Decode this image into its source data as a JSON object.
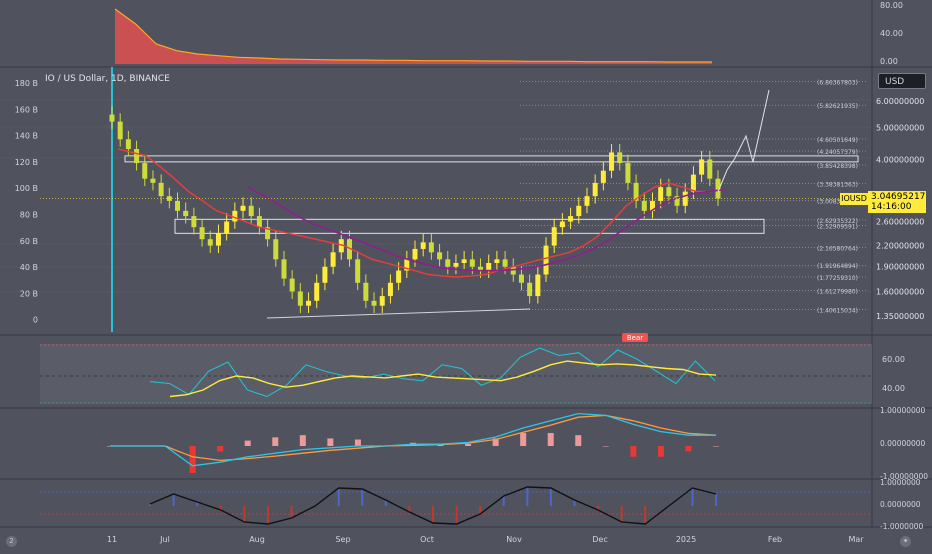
{
  "header": {
    "title": "IO / US Dollar, 1D, BINANCE"
  },
  "currency_button": "USD",
  "price_tag": {
    "symbol": "IOUSD",
    "price": "3.04695217",
    "countdown": "14:16:00"
  },
  "corner_icons": {
    "left": "2",
    "right": "tv-logo-icon"
  },
  "colors": {
    "background": "#50535e",
    "up_candle": "#ffeb3b",
    "down_candle": "#cddc39",
    "ma_fast": "#ef3b3b",
    "ma_slow": "#8e1f8e",
    "volume_area": "#e05050",
    "rsi": "#ffeb3b",
    "rsi_fast": "#21c6d6",
    "macd": "#2ec4e6",
    "signal": "#ff9a3c"
  },
  "price_axis": [
    "6.00000000",
    "5.00000000",
    "4.00000000",
    "2.60000000",
    "2.20000000",
    "1.90000000",
    "1.60000000",
    "1.35000000"
  ],
  "price_axis_values": [
    6.0,
    5.0,
    4.0,
    2.6,
    2.2,
    1.9,
    1.6,
    1.35
  ],
  "volume_axis": [
    "180 B",
    "160 B",
    "140 B",
    "120 B",
    "100 B",
    "80 B",
    "60 B",
    "40 B",
    "20 B",
    "0"
  ],
  "top_panel_axis": [
    "80.00",
    "40.00",
    "0.00"
  ],
  "rsi_axis": [
    "60.00",
    "40.00"
  ],
  "macd_axis": [
    "1.00000000",
    "0.00000000",
    "-1.00000000"
  ],
  "osc_axis": [
    "1.0000000",
    "0.0000000",
    "-1.0000000"
  ],
  "fib_levels": [
    {
      "label": "(6.86367803)",
      "value": 6.86
    },
    {
      "label": "(5.82621935)",
      "value": 5.83
    },
    {
      "label": "(4.60501649)",
      "value": 4.61
    },
    {
      "label": "(4.24057379)",
      "value": 4.24
    },
    {
      "label": "(3.85428398)",
      "value": 3.85
    },
    {
      "label": "(3.38381363)",
      "value": 3.38
    },
    {
      "label": "(3.00838343)",
      "value": 3.01
    },
    {
      "label": "(2.62935322)",
      "value": 2.63
    },
    {
      "label": "(2.52909591)",
      "value": 2.53
    },
    {
      "label": "(2.16580764)",
      "value": 2.17
    },
    {
      "label": "(1.91964894)",
      "value": 1.92
    },
    {
      "label": "(1.77259310)",
      "value": 1.77
    },
    {
      "label": "(1.61279980)",
      "value": 1.61
    },
    {
      "label": "(1.40615034)",
      "value": 1.41
    }
  ],
  "bear_label": "Bear",
  "time_axis": [
    "11",
    "Jul",
    "Aug",
    "Sep",
    "Oct",
    "Nov",
    "Dec",
    "2025",
    "Feb",
    "Mar"
  ],
  "chart_data": {
    "type": "line",
    "x_ticks": [
      "11",
      "Jul",
      "Aug",
      "Sep",
      "Oct",
      "Nov",
      "Dec",
      "2025",
      "Feb",
      "Mar"
    ],
    "price_close": [
      5.2,
      4.6,
      4.3,
      3.9,
      3.5,
      3.4,
      3.1,
      3.0,
      2.8,
      2.7,
      2.5,
      2.3,
      2.2,
      2.4,
      2.6,
      2.8,
      2.9,
      2.7,
      2.5,
      2.3,
      2.0,
      1.75,
      1.6,
      1.45,
      1.5,
      1.7,
      1.9,
      2.1,
      2.3,
      2.0,
      1.7,
      1.5,
      1.45,
      1.55,
      1.7,
      1.85,
      2.0,
      2.15,
      2.25,
      2.1,
      2.0,
      1.9,
      1.95,
      2.0,
      1.9,
      1.85,
      1.95,
      2.0,
      1.9,
      1.8,
      1.7,
      1.55,
      1.8,
      2.2,
      2.5,
      2.6,
      2.7,
      2.9,
      3.1,
      3.4,
      3.7,
      4.2,
      3.9,
      3.4,
      3.0,
      2.8,
      3.0,
      3.3,
      3.1,
      2.9,
      3.2,
      3.6,
      4.0,
      3.5,
      3.05
    ],
    "ma_fast": [
      4.3,
      4.2,
      4.1,
      3.8,
      3.5,
      3.2,
      3.0,
      2.8,
      2.7,
      2.6,
      2.5,
      2.45,
      2.4,
      2.35,
      2.3,
      2.25,
      2.2,
      2.1,
      2.0,
      1.95,
      1.9,
      1.85,
      1.8,
      1.78,
      1.77,
      1.78,
      1.8,
      1.85,
      1.9,
      1.95,
      2.0,
      2.05,
      2.1,
      2.2,
      2.35,
      2.6,
      2.9,
      3.1,
      3.3,
      3.4,
      3.3,
      3.2,
      3.2,
      3.25
    ],
    "ma_slow": [
      3.3,
      3.1,
      2.9,
      2.7,
      2.55,
      2.45,
      2.35,
      2.25,
      2.15,
      2.05,
      1.98,
      1.92,
      1.88,
      1.86,
      1.85,
      1.85,
      1.86,
      1.88,
      1.92,
      1.98,
      2.05,
      2.15,
      2.3,
      2.5,
      2.7,
      2.9,
      3.05,
      3.15,
      3.2,
      3.25
    ],
    "volume_b": [
      165,
      120,
      60,
      40,
      30,
      25,
      20,
      18,
      15,
      14,
      13,
      12,
      12,
      11,
      11,
      10,
      10,
      10,
      9,
      9,
      8,
      8,
      8,
      7,
      7,
      7,
      7,
      6,
      6,
      6
    ],
    "rsi": [
      28,
      30,
      35,
      45,
      50,
      48,
      42,
      38,
      40,
      44,
      48,
      50,
      49,
      48,
      50,
      52,
      49,
      48,
      47,
      46,
      45,
      49,
      55,
      62,
      66,
      64,
      62,
      63,
      62,
      60,
      58,
      57,
      52,
      51
    ],
    "rsi_fast": [
      44,
      42,
      30,
      55,
      65,
      35,
      28,
      40,
      62,
      55,
      50,
      48,
      52,
      47,
      45,
      62,
      58,
      40,
      48,
      70,
      80,
      72,
      75,
      60,
      78,
      68,
      55,
      42,
      66,
      45
    ],
    "macd": [
      0,
      0,
      0,
      -0.55,
      -0.45,
      -0.3,
      -0.2,
      -0.1,
      -0.05,
      0,
      0,
      0.05,
      0.05,
      0.1,
      0.25,
      0.5,
      0.7,
      0.9,
      0.85,
      0.6,
      0.4,
      0.3,
      0.3
    ],
    "signal": [
      0,
      0,
      0,
      -0.3,
      -0.4,
      -0.35,
      -0.28,
      -0.2,
      -0.12,
      -0.06,
      0,
      0.02,
      0.04,
      0.08,
      0.18,
      0.38,
      0.58,
      0.8,
      0.85,
      0.7,
      0.5,
      0.35,
      0.3
    ],
    "oscillator": [
      0.1,
      0.6,
      0.2,
      -0.2,
      -0.8,
      -0.9,
      -0.6,
      0.0,
      0.9,
      0.85,
      0.3,
      -0.3,
      -0.85,
      -0.9,
      -0.4,
      0.5,
      0.95,
      0.9,
      0.3,
      -0.2,
      -0.8,
      -0.9,
      0.0,
      0.9,
      0.6
    ],
    "y_scale": "log"
  }
}
